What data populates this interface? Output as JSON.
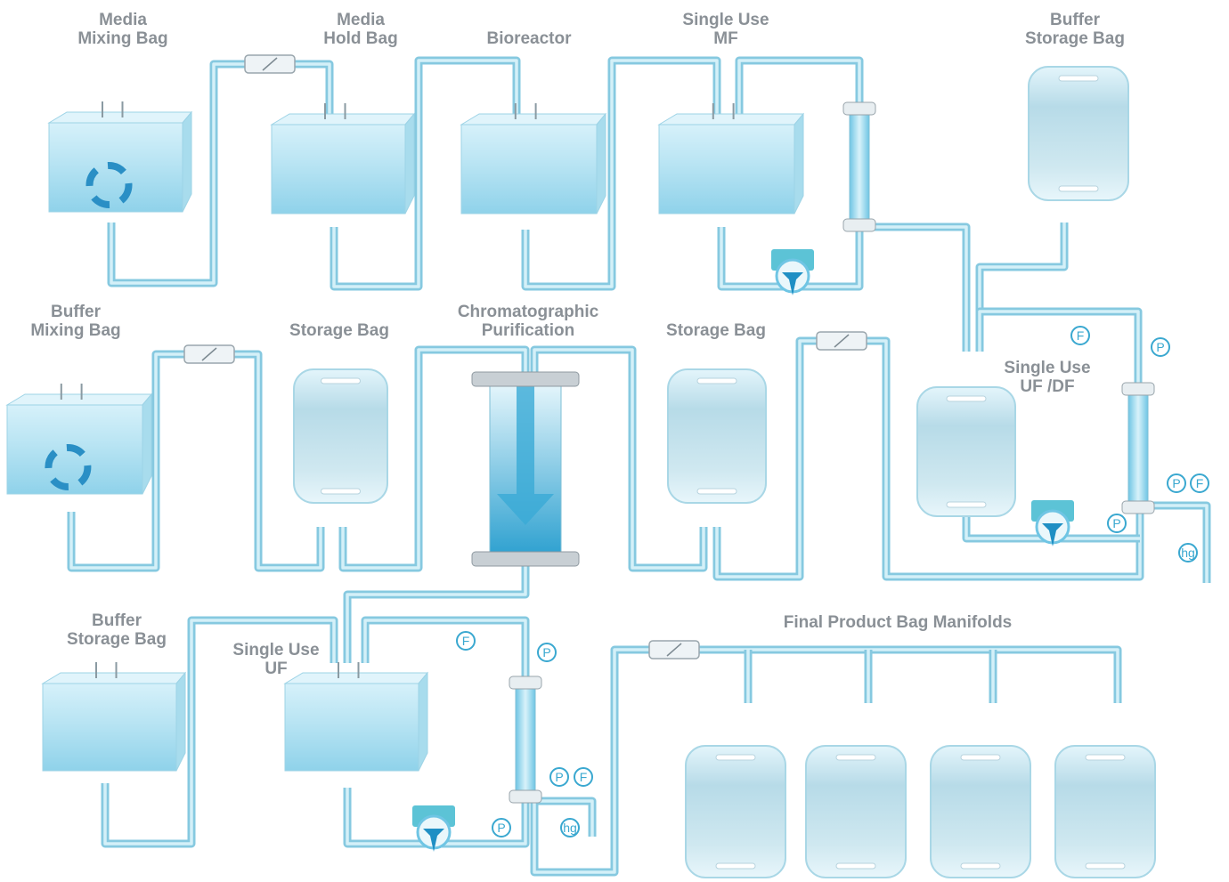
{
  "labels": [
    {
      "lines": [
        "Media",
        "Mixing Bag"
      ]
    },
    {
      "lines": [
        "Media",
        "Hold Bag"
      ]
    },
    {
      "lines": [
        "Bioreactor"
      ]
    },
    {
      "lines": [
        "Single Use",
        "MF"
      ]
    },
    {
      "lines": [
        "Buffer",
        "Storage Bag"
      ]
    },
    {
      "lines": [
        "Buffer",
        "Mixing Bag"
      ]
    },
    {
      "lines": [
        "Storage Bag"
      ]
    },
    {
      "lines": [
        "Chromatographic",
        "Purification"
      ]
    },
    {
      "lines": [
        "Storage Bag"
      ]
    },
    {
      "lines": [
        "Single Use",
        "UF /DF"
      ]
    },
    {
      "lines": [
        "Buffer",
        "Storage Bag"
      ]
    },
    {
      "lines": [
        "Single Use",
        "UF"
      ]
    },
    {
      "lines": [
        "Final Product Bag Manifolds"
      ]
    }
  ],
  "sensors": [
    {
      "label": "F"
    },
    {
      "label": "P"
    },
    {
      "label": "P"
    },
    {
      "label": "F"
    },
    {
      "label": "P"
    },
    {
      "label": "hg"
    },
    {
      "label": "F"
    },
    {
      "label": "P"
    },
    {
      "label": "P"
    },
    {
      "label": "F"
    },
    {
      "label": "P"
    },
    {
      "label": "hg"
    }
  ]
}
